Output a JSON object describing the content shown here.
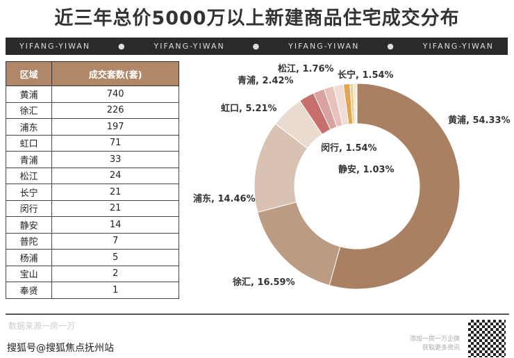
{
  "title": "近三年总价5000万以上新建商品住宅成交分布",
  "band": [
    "YIFANG-YIWAN",
    "●",
    "YIFANG-YIWAN",
    "●",
    "YIFANG-YIWAN",
    "●",
    "YIFANG-YIWAN"
  ],
  "table": {
    "headers": [
      "区域",
      "成交套数(套)"
    ],
    "rows": [
      [
        "黄浦",
        "740"
      ],
      [
        "徐汇",
        "226"
      ],
      [
        "浦东",
        "197"
      ],
      [
        "虹口",
        "71"
      ],
      [
        "青浦",
        "33"
      ],
      [
        "松江",
        "24"
      ],
      [
        "长宁",
        "21"
      ],
      [
        "闵行",
        "21"
      ],
      [
        "静安",
        "14"
      ],
      [
        "普陀",
        "7"
      ],
      [
        "杨浦",
        "5"
      ],
      [
        "宝山",
        "2"
      ],
      [
        "奉贤",
        "1"
      ]
    ]
  },
  "chart_data": {
    "type": "pie",
    "donut": true,
    "slices": [
      {
        "label": "黄浦, 54.33%",
        "name": "黄浦",
        "value": 54.33,
        "color": "#a98062"
      },
      {
        "label": "徐汇, 16.59%",
        "name": "徐汇",
        "value": 16.59,
        "color": "#bb9c83"
      },
      {
        "label": "浦东, 14.46%",
        "name": "浦东",
        "value": 14.46,
        "color": "#d9c2b1"
      },
      {
        "label": "虹口, 5.21%",
        "name": "虹口",
        "value": 5.21,
        "color": "#eadbd0"
      },
      {
        "label": "青浦, 2.42%",
        "name": "青浦",
        "value": 2.42,
        "color": "#c66f6c"
      },
      {
        "label": "松江, 1.76%",
        "name": "松江",
        "value": 1.76,
        "color": "#d9a4a0"
      },
      {
        "label": "长宁, 1.54%",
        "name": "长宁",
        "value": 1.54,
        "color": "#e7c2bd"
      },
      {
        "label": "闵行, 1.54%",
        "name": "闵行",
        "value": 1.54,
        "color": "#f1dcd8"
      },
      {
        "label": "静安, 1.03%",
        "name": "静安",
        "value": 1.03,
        "color": "#e3a550"
      },
      {
        "label": "",
        "name": "普陀",
        "value": 0.51,
        "color": "#eccf95"
      },
      {
        "label": "",
        "name": "杨浦",
        "value": 0.37,
        "color": "#f3e2bd"
      },
      {
        "label": "",
        "name": "宝山",
        "value": 0.15,
        "color": "#c99a6e"
      },
      {
        "label": "",
        "name": "奉贤",
        "value": 0.07,
        "color": "#e0c8b0"
      }
    ]
  },
  "footer": {
    "source": "数据来源一房一万",
    "sohu": "搜狐号@搜狐焦点抚州站",
    "qr_line1": "添加一房一万企微",
    "qr_line2": "获取更多资讯"
  }
}
